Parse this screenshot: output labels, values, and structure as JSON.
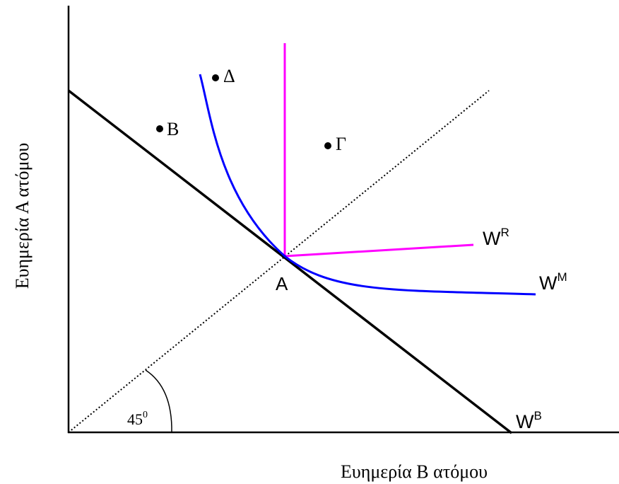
{
  "axes": {
    "x_label": "Ευημερία Β ατόμου",
    "y_label": "Ευημερία Α ατόμου"
  },
  "angle_label": {
    "base": "45",
    "superscript": "0"
  },
  "points": {
    "A": "A",
    "B": "B",
    "Gamma": "Γ",
    "Delta": "Δ"
  },
  "curves": {
    "WB": {
      "base": "W",
      "superscript": "B",
      "color": "#000000"
    },
    "WR": {
      "base": "W",
      "superscript": "R",
      "color": "#ff00ff"
    },
    "WM": {
      "base": "W",
      "superscript": "M",
      "color": "#0000ff"
    }
  },
  "colors": {
    "axis": "#000000",
    "diagonal": "#000000",
    "rawlsian": "#ff00ff",
    "mixed": "#0000ff"
  }
}
